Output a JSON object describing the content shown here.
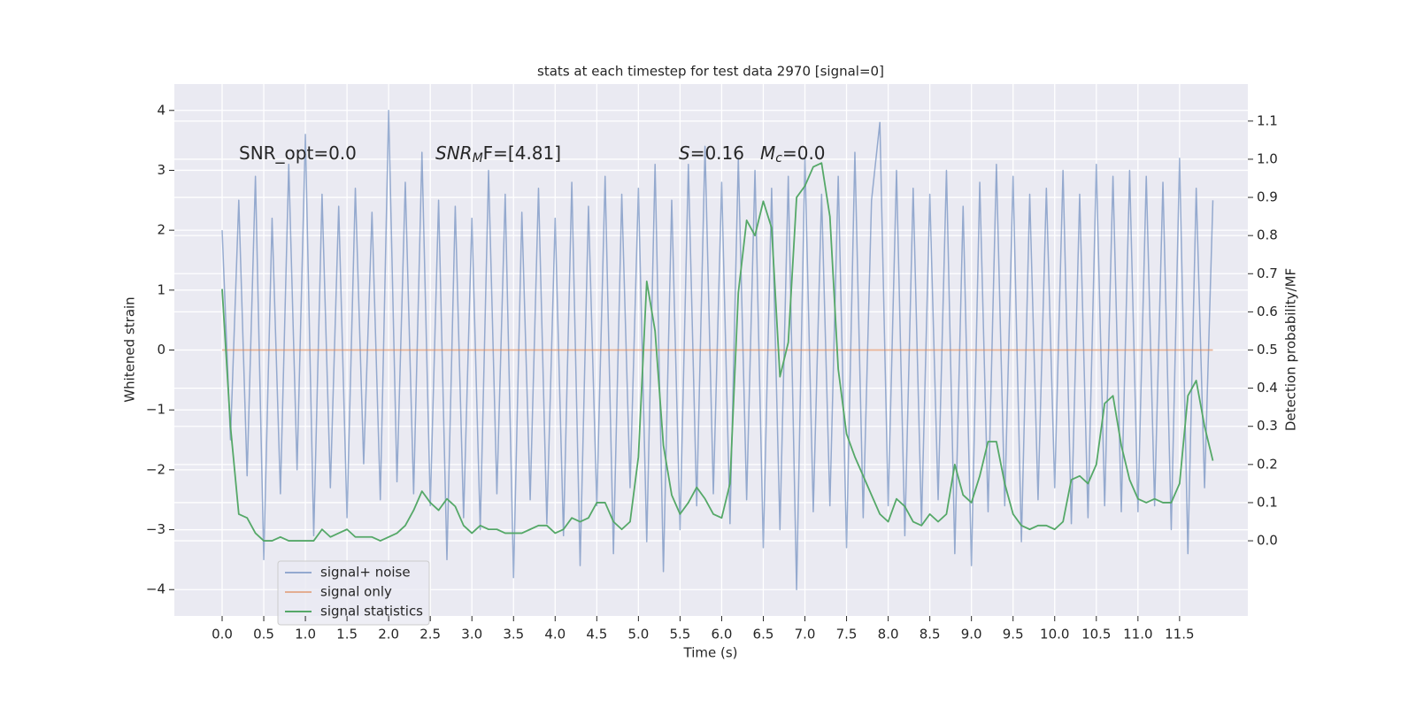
{
  "chart_data": {
    "type": "line",
    "title": "stats at each timestep for test data 2970 [signal=0]",
    "x_label": "Time (s)",
    "y_label": "Whitened strain",
    "y2_label": "Detection probability/MF",
    "annotations": [
      {
        "text": "SNR_opt=0.0"
      },
      {
        "text": "SNR",
        "sub": "M",
        "rest": "F=[4.81]"
      },
      {
        "text": "S",
        "rest": "=0.16"
      },
      {
        "text": "M",
        "sub": "c",
        "rest": "=0.0"
      }
    ],
    "x": [
      0.0,
      0.1,
      0.2,
      0.3,
      0.4,
      0.5,
      0.6,
      0.7,
      0.8,
      0.9,
      1.0,
      1.1,
      1.2,
      1.3,
      1.4,
      1.5,
      1.6,
      1.7,
      1.8,
      1.9,
      2.0,
      2.1,
      2.2,
      2.3,
      2.4,
      2.5,
      2.6,
      2.7,
      2.8,
      2.9,
      3.0,
      3.1,
      3.2,
      3.3,
      3.4,
      3.5,
      3.6,
      3.7,
      3.8,
      3.9,
      4.0,
      4.1,
      4.2,
      4.3,
      4.4,
      4.5,
      4.6,
      4.7,
      4.8,
      4.9,
      5.0,
      5.1,
      5.2,
      5.3,
      5.4,
      5.5,
      5.6,
      5.7,
      5.8,
      5.9,
      6.0,
      6.1,
      6.2,
      6.3,
      6.4,
      6.5,
      6.6,
      6.7,
      6.8,
      6.9,
      7.0,
      7.1,
      7.2,
      7.3,
      7.4,
      7.5,
      7.6,
      7.7,
      7.8,
      7.9,
      8.0,
      8.1,
      8.2,
      8.3,
      8.4,
      8.5,
      8.6,
      8.7,
      8.8,
      8.9,
      9.0,
      9.1,
      9.2,
      9.3,
      9.4,
      9.5,
      9.6,
      9.7,
      9.8,
      9.9,
      10.0,
      10.1,
      10.2,
      10.3,
      10.4,
      10.5,
      10.6,
      10.7,
      10.8,
      10.9,
      11.0,
      11.1,
      11.2,
      11.3,
      11.4,
      11.5,
      11.6,
      11.7,
      11.8,
      11.9
    ],
    "series": [
      {
        "name": "signal+ noise",
        "color": "#4c72b0",
        "values": [
          2.0,
          -1.5,
          2.5,
          -2.1,
          2.9,
          -3.5,
          2.2,
          -2.4,
          3.1,
          -2.0,
          3.6,
          -3.1,
          2.6,
          -2.3,
          2.4,
          -2.8,
          2.7,
          -1.9,
          2.3,
          -2.5,
          4.0,
          -2.2,
          2.8,
          -2.4,
          3.3,
          -2.6,
          2.5,
          -3.5,
          2.4,
          -2.8,
          2.2,
          -3.0,
          3.0,
          -2.4,
          2.6,
          -3.8,
          2.3,
          -2.5,
          2.7,
          -2.9,
          2.2,
          -3.1,
          2.8,
          -3.6,
          2.4,
          -2.6,
          2.9,
          -3.4,
          2.6,
          -2.3,
          2.7,
          -3.2,
          3.1,
          -3.7,
          2.5,
          -3.0,
          3.1,
          -2.6,
          3.4,
          -2.4,
          2.8,
          -2.9,
          3.2,
          -2.5,
          3.0,
          -3.3,
          2.7,
          -3.0,
          2.9,
          -4.0,
          3.2,
          -2.7,
          2.6,
          -2.6,
          2.9,
          -3.3,
          3.3,
          -2.8,
          2.5,
          3.8,
          -2.6,
          3.0,
          -3.1,
          2.7,
          -2.9,
          2.6,
          -2.5,
          3.0,
          -3.4,
          2.4,
          -3.6,
          2.8,
          -2.7,
          3.1,
          -2.6,
          2.9,
          -3.2,
          2.6,
          -2.5,
          2.7,
          -2.3,
          3.0,
          -2.9,
          2.6,
          -2.8,
          3.1,
          -2.6,
          2.9,
          -2.7,
          3.0,
          -2.7,
          2.9,
          -2.6,
          2.8,
          -3.0,
          3.2,
          -3.4,
          2.7,
          -2.3,
          2.5
        ]
      },
      {
        "name": "signal only",
        "color": "#dd8452",
        "values": [
          0,
          0,
          0,
          0,
          0,
          0,
          0,
          0,
          0,
          0,
          0,
          0,
          0,
          0,
          0,
          0,
          0,
          0,
          0,
          0,
          0,
          0,
          0,
          0,
          0,
          0,
          0,
          0,
          0,
          0,
          0,
          0,
          0,
          0,
          0,
          0,
          0,
          0,
          0,
          0,
          0,
          0,
          0,
          0,
          0,
          0,
          0,
          0,
          0,
          0,
          0,
          0,
          0,
          0,
          0,
          0,
          0,
          0,
          0,
          0,
          0,
          0,
          0,
          0,
          0,
          0,
          0,
          0,
          0,
          0,
          0,
          0,
          0,
          0,
          0,
          0,
          0,
          0,
          0,
          0,
          0,
          0,
          0,
          0,
          0,
          0,
          0,
          0,
          0,
          0,
          0,
          0,
          0,
          0,
          0,
          0,
          0,
          0,
          0,
          0,
          0,
          0,
          0,
          0,
          0,
          0,
          0,
          0,
          0,
          0,
          0,
          0,
          0,
          0,
          0,
          0,
          0,
          0,
          0,
          0
        ]
      },
      {
        "name": "signal statistics",
        "color": "#55a868",
        "axis": "y2",
        "values": [
          0.66,
          0.3,
          0.07,
          0.06,
          0.02,
          0.0,
          0.0,
          0.01,
          0.0,
          0.0,
          0.0,
          0.0,
          0.03,
          0.01,
          0.02,
          0.03,
          0.01,
          0.01,
          0.01,
          0.0,
          0.01,
          0.02,
          0.04,
          0.08,
          0.13,
          0.1,
          0.08,
          0.11,
          0.09,
          0.04,
          0.02,
          0.04,
          0.03,
          0.03,
          0.02,
          0.02,
          0.02,
          0.03,
          0.04,
          0.04,
          0.02,
          0.03,
          0.06,
          0.05,
          0.06,
          0.1,
          0.1,
          0.05,
          0.03,
          0.05,
          0.22,
          0.68,
          0.55,
          0.25,
          0.12,
          0.07,
          0.1,
          0.14,
          0.11,
          0.07,
          0.06,
          0.15,
          0.65,
          0.84,
          0.8,
          0.89,
          0.82,
          0.43,
          0.52,
          0.9,
          0.93,
          0.98,
          0.99,
          0.85,
          0.45,
          0.28,
          0.22,
          0.17,
          0.12,
          0.07,
          0.05,
          0.11,
          0.09,
          0.05,
          0.04,
          0.07,
          0.05,
          0.07,
          0.2,
          0.12,
          0.1,
          0.17,
          0.26,
          0.26,
          0.15,
          0.07,
          0.04,
          0.03,
          0.04,
          0.04,
          0.03,
          0.05,
          0.16,
          0.17,
          0.15,
          0.2,
          0.36,
          0.38,
          0.25,
          0.16,
          0.11,
          0.1,
          0.11,
          0.1,
          0.1,
          0.15,
          0.38,
          0.42,
          0.3,
          0.21
        ]
      }
    ],
    "xlim": [
      -0.574,
      12.32
    ],
    "xticks": [
      {
        "value": 0,
        "label": "0.0"
      },
      {
        "value": 0.5,
        "label": "0.5"
      },
      {
        "value": 1,
        "label": "1.0"
      },
      {
        "value": 1.5,
        "label": "1.5"
      },
      {
        "value": 2,
        "label": "2.0"
      },
      {
        "value": 2.5,
        "label": "2.5"
      },
      {
        "value": 3,
        "label": "3.0"
      },
      {
        "value": 3.5,
        "label": "3.5"
      },
      {
        "value": 4,
        "label": "4.0"
      },
      {
        "value": 4.5,
        "label": "4.5"
      },
      {
        "value": 5,
        "label": "5.0"
      },
      {
        "value": 5.5,
        "label": "5.5"
      },
      {
        "value": 6,
        "label": "6.0"
      },
      {
        "value": 6.5,
        "label": "6.5"
      },
      {
        "value": 7,
        "label": "7.0"
      },
      {
        "value": 7.5,
        "label": "7.5"
      },
      {
        "value": 8,
        "label": "8.0"
      },
      {
        "value": 8.5,
        "label": "8.5"
      },
      {
        "value": 9,
        "label": "9.0"
      },
      {
        "value": 9.5,
        "label": "9.5"
      },
      {
        "value": 10,
        "label": "10.0"
      },
      {
        "value": 10.5,
        "label": "10.5"
      },
      {
        "value": 11,
        "label": "11.0"
      },
      {
        "value": 11.5,
        "label": "11.5"
      }
    ],
    "ylim": [
      -4.44,
      4.44
    ],
    "yticks": [
      {
        "value": -4,
        "label": "−4"
      },
      {
        "value": -3,
        "label": "−3"
      },
      {
        "value": -2,
        "label": "−2"
      },
      {
        "value": -1,
        "label": "−1"
      },
      0,
      1,
      2,
      3,
      4
    ],
    "y2lim": [
      -0.197,
      1.197
    ],
    "y2ticks": [
      {
        "value": 0,
        "label": "0.0"
      },
      {
        "value": 0.1,
        "label": "0.1"
      },
      {
        "value": 0.2,
        "label": "0.2"
      },
      {
        "value": 0.3,
        "label": "0.3"
      },
      {
        "value": 0.4,
        "label": "0.4"
      },
      {
        "value": 0.5,
        "label": "0.5"
      },
      {
        "value": 0.6,
        "label": "0.6"
      },
      {
        "value": 0.7,
        "label": "0.7"
      },
      {
        "value": 0.8,
        "label": "0.8"
      },
      {
        "value": 0.9,
        "label": "0.9"
      },
      {
        "value": 1.0,
        "label": "1.0"
      },
      {
        "value": 1.1,
        "label": "1.1"
      }
    ],
    "grid": true,
    "legend": "lower left"
  }
}
